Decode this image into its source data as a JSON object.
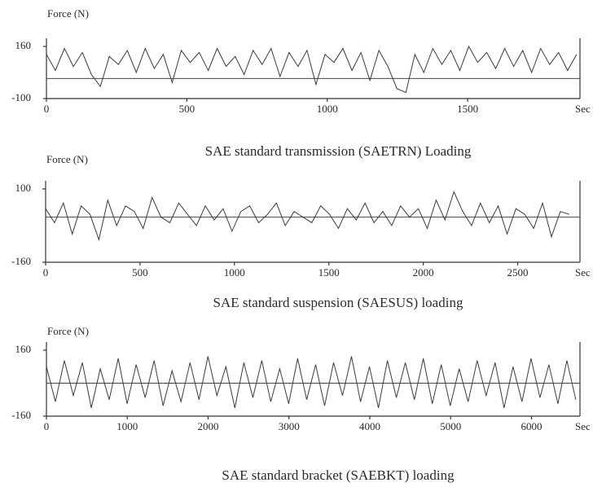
{
  "chart_data": [
    {
      "type": "line",
      "title": "SAE standard transmission (SAETRN) Loading",
      "y_label": "Force (N)",
      "x_label": "Sec",
      "color": "#3a3a3a",
      "xlim": [
        0,
        1900
      ],
      "xticks": [
        0,
        500,
        1000,
        1500
      ],
      "ylim": [
        -100,
        160
      ],
      "yticks": [
        -100,
        160
      ],
      "x": [
        0,
        32,
        64,
        96,
        128,
        160,
        192,
        224,
        256,
        288,
        320,
        352,
        384,
        416,
        448,
        480,
        512,
        544,
        576,
        608,
        640,
        672,
        704,
        736,
        768,
        800,
        832,
        864,
        896,
        928,
        960,
        992,
        1024,
        1056,
        1088,
        1120,
        1152,
        1184,
        1216,
        1248,
        1280,
        1312,
        1344,
        1376,
        1408,
        1440,
        1472,
        1504,
        1536,
        1568,
        1600,
        1632,
        1664,
        1696,
        1728,
        1760,
        1792,
        1824,
        1856,
        1888
      ],
      "values": [
        120,
        40,
        150,
        60,
        130,
        20,
        -40,
        110,
        70,
        140,
        30,
        150,
        50,
        120,
        -20,
        140,
        80,
        130,
        40,
        150,
        60,
        110,
        20,
        140,
        70,
        150,
        10,
        130,
        60,
        140,
        -30,
        120,
        80,
        150,
        40,
        130,
        -10,
        140,
        60,
        -50,
        -70,
        120,
        30,
        150,
        70,
        140,
        40,
        160,
        80,
        130,
        50,
        150,
        60,
        140,
        30,
        150,
        70,
        130,
        40,
        120
      ]
    },
    {
      "type": "line",
      "title": "SAE standard suspension (SAESUS) loading",
      "y_label": "Force (N)",
      "x_label": "Sec",
      "color": "#3a3a3a",
      "xlim": [
        0,
        2830
      ],
      "xticks": [
        0,
        500,
        1000,
        1500,
        2000,
        2500
      ],
      "ylim": [
        -160,
        100
      ],
      "yticks": [
        -160,
        100
      ],
      "x": [
        0,
        47,
        94,
        141,
        188,
        235,
        282,
        329,
        376,
        423,
        470,
        517,
        564,
        611,
        658,
        705,
        752,
        799,
        846,
        893,
        940,
        987,
        1034,
        1081,
        1128,
        1175,
        1222,
        1269,
        1316,
        1363,
        1410,
        1457,
        1504,
        1551,
        1598,
        1645,
        1692,
        1739,
        1786,
        1833,
        1880,
        1927,
        1974,
        2021,
        2068,
        2115,
        2162,
        2209,
        2256,
        2303,
        2350,
        2397,
        2444,
        2491,
        2538,
        2585,
        2632,
        2679,
        2726,
        2773
      ],
      "values": [
        30,
        -20,
        50,
        -60,
        40,
        10,
        -80,
        60,
        -30,
        40,
        20,
        -40,
        70,
        0,
        -20,
        50,
        10,
        -30,
        40,
        -10,
        30,
        -50,
        20,
        40,
        -20,
        10,
        50,
        -30,
        20,
        0,
        -20,
        40,
        10,
        -40,
        30,
        -10,
        50,
        -20,
        20,
        -30,
        40,
        0,
        30,
        -40,
        60,
        -10,
        90,
        20,
        -30,
        50,
        -20,
        40,
        -60,
        30,
        10,
        -40,
        50,
        -70,
        20,
        10
      ]
    },
    {
      "type": "line",
      "title": "SAE standard bracket (SAEBKT) loading",
      "y_label": "Force (N)",
      "x_label": "Sec",
      "color": "#3a3a3a",
      "xlim": [
        0,
        6600
      ],
      "xticks": [
        0,
        1000,
        2000,
        3000,
        4000,
        5000,
        6000
      ],
      "ylim": [
        -160,
        160
      ],
      "yticks": [
        -160,
        160
      ],
      "x": [
        0,
        111,
        222,
        333,
        444,
        555,
        666,
        777,
        888,
        999,
        1110,
        1221,
        1332,
        1443,
        1554,
        1665,
        1776,
        1887,
        1998,
        2109,
        2220,
        2331,
        2442,
        2553,
        2664,
        2775,
        2886,
        2997,
        3108,
        3219,
        3330,
        3441,
        3552,
        3663,
        3774,
        3885,
        3996,
        4107,
        4218,
        4329,
        4440,
        4551,
        4662,
        4773,
        4884,
        4995,
        5106,
        5217,
        5328,
        5439,
        5550,
        5661,
        5772,
        5883,
        5994,
        6105,
        6216,
        6327,
        6438,
        6549
      ],
      "values": [
        80,
        -90,
        110,
        -60,
        100,
        -120,
        70,
        -80,
        120,
        -100,
        90,
        -70,
        110,
        -110,
        60,
        -90,
        100,
        -80,
        130,
        -60,
        80,
        -120,
        100,
        -70,
        110,
        -90,
        70,
        -100,
        120,
        -80,
        90,
        -110,
        100,
        -60,
        130,
        -90,
        80,
        -120,
        110,
        -70,
        100,
        -80,
        120,
        -100,
        90,
        -110,
        70,
        -90,
        110,
        -60,
        100,
        -120,
        80,
        -90,
        120,
        -70,
        90,
        -100,
        110,
        -80
      ]
    }
  ]
}
